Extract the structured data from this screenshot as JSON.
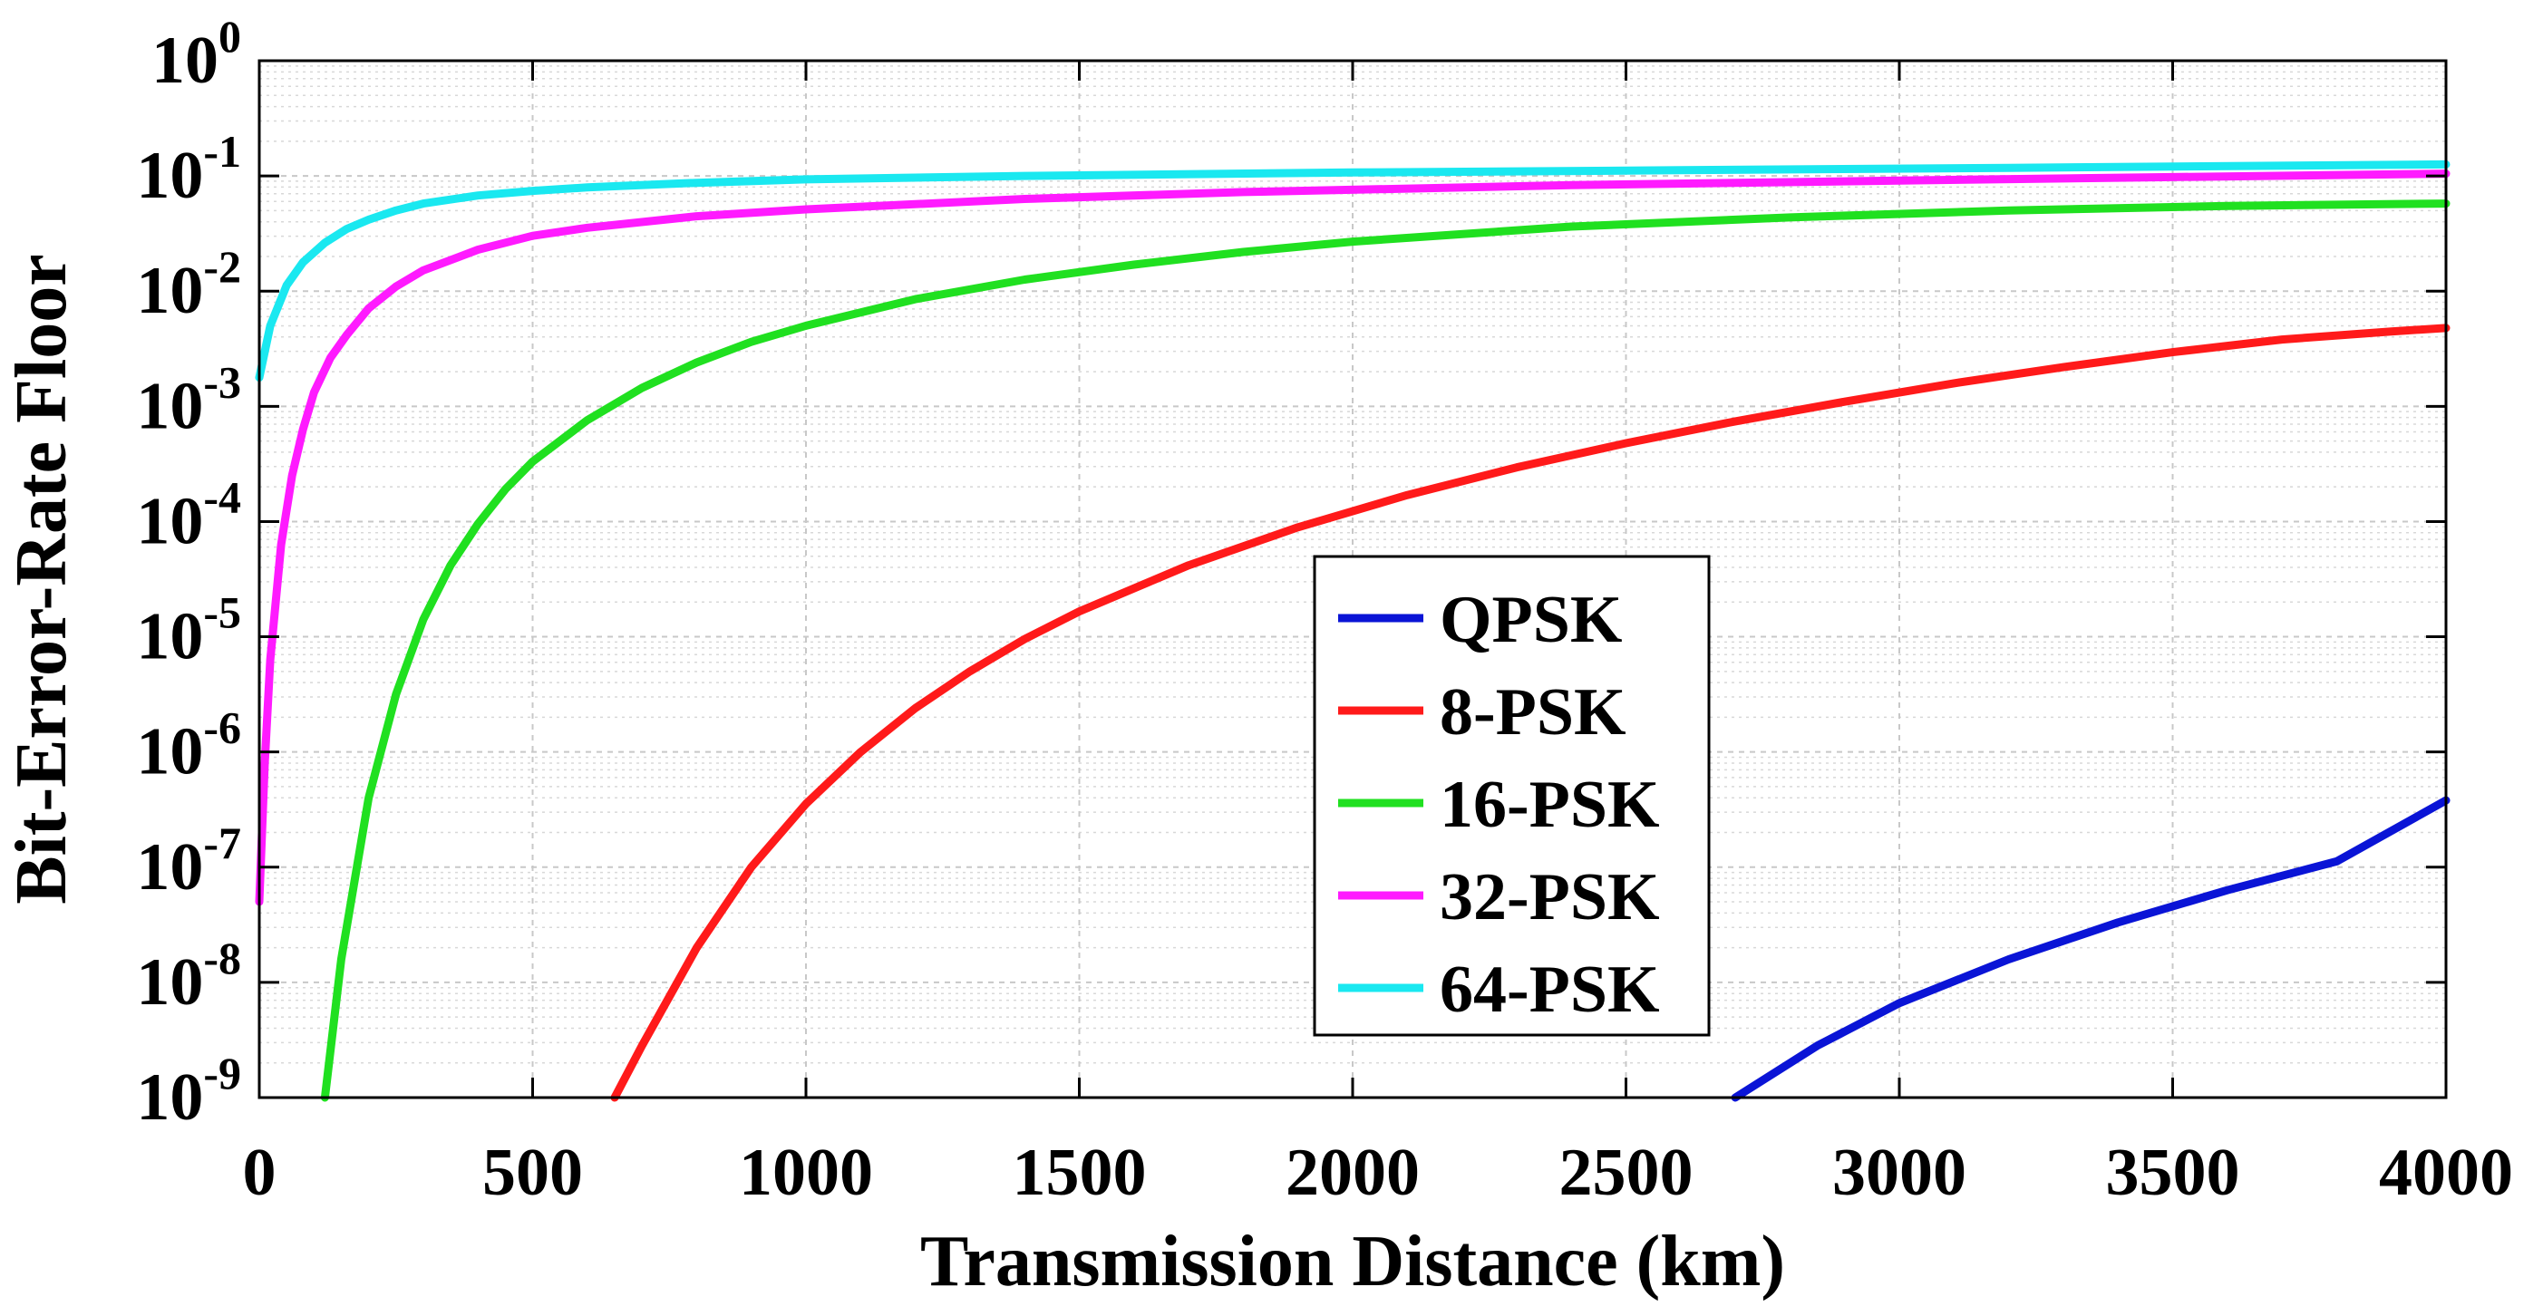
{
  "chart_data": {
    "type": "line",
    "title": "",
    "xlabel": "Transmission Distance (km)",
    "ylabel": "Bit-Error-Rate Floor",
    "xlim": [
      0,
      4000
    ],
    "ylim_log10": [
      -9,
      0
    ],
    "y_scale": "log",
    "grid": true,
    "legend_position": "center-right",
    "x_ticks": [
      0,
      500,
      1000,
      1500,
      2000,
      2500,
      3000,
      3500,
      4000
    ],
    "y_tick_exponents": [
      "0",
      "-1",
      "-2",
      "-3",
      "-4",
      "-5",
      "-6",
      "-7",
      "-8",
      "-9"
    ],
    "y_tick_base": "10",
    "series": [
      {
        "name": "QPSK",
        "color": "#0a14d6",
        "x": [
          2700,
          2850,
          3000,
          3200,
          3400,
          3600,
          3800,
          4000
        ],
        "log10_y": [
          -9.0,
          -8.55,
          -8.18,
          -7.8,
          -7.48,
          -7.2,
          -6.95,
          -6.42
        ]
      },
      {
        "name": "8-PSK",
        "color": "#ff1a1a",
        "x": [
          650,
          700,
          800,
          900,
          1000,
          1100,
          1200,
          1300,
          1400,
          1500,
          1700,
          1900,
          2100,
          2300,
          2500,
          2700,
          2900,
          3100,
          3300,
          3500,
          3700,
          3900,
          4000
        ],
        "log10_y": [
          -9.0,
          -8.55,
          -7.7,
          -7.0,
          -6.45,
          -6.0,
          -5.62,
          -5.3,
          -5.02,
          -4.78,
          -4.38,
          -4.05,
          -3.77,
          -3.53,
          -3.32,
          -3.13,
          -2.96,
          -2.8,
          -2.66,
          -2.53,
          -2.42,
          -2.35,
          -2.32
        ]
      },
      {
        "name": "16-PSK",
        "color": "#20e020",
        "x": [
          120,
          150,
          200,
          250,
          300,
          350,
          400,
          450,
          500,
          600,
          700,
          800,
          900,
          1000,
          1200,
          1400,
          1600,
          1800,
          2000,
          2400,
          2800,
          3200,
          3600,
          4000
        ],
        "log10_y": [
          -9.0,
          -7.8,
          -6.4,
          -5.5,
          -4.85,
          -4.38,
          -4.02,
          -3.72,
          -3.48,
          -3.12,
          -2.84,
          -2.62,
          -2.44,
          -2.3,
          -2.07,
          -1.9,
          -1.77,
          -1.66,
          -1.57,
          -1.44,
          -1.36,
          -1.3,
          -1.26,
          -1.24
        ]
      },
      {
        "name": "32-PSK",
        "color": "#ff1aff",
        "x": [
          0,
          10,
          20,
          40,
          60,
          80,
          100,
          130,
          160,
          200,
          250,
          300,
          400,
          500,
          600,
          800,
          1000,
          1400,
          1800,
          2400,
          3000,
          3500,
          4000
        ],
        "log10_y": [
          -7.3,
          -6.1,
          -5.2,
          -4.2,
          -3.6,
          -3.2,
          -2.88,
          -2.58,
          -2.38,
          -2.15,
          -1.96,
          -1.82,
          -1.64,
          -1.52,
          -1.45,
          -1.35,
          -1.29,
          -1.2,
          -1.14,
          -1.08,
          -1.04,
          -1.01,
          -0.98
        ]
      },
      {
        "name": "64-PSK",
        "color": "#1ae8f0",
        "x": [
          0,
          20,
          50,
          80,
          120,
          160,
          200,
          250,
          300,
          400,
          500,
          600,
          800,
          1000,
          1400,
          2000,
          2600,
          3200,
          4000
        ],
        "log10_y": [
          -2.75,
          -2.3,
          -1.95,
          -1.75,
          -1.58,
          -1.46,
          -1.38,
          -1.3,
          -1.24,
          -1.17,
          -1.13,
          -1.1,
          -1.06,
          -1.03,
          -1.0,
          -0.97,
          -0.95,
          -0.93,
          -0.9
        ]
      }
    ]
  }
}
